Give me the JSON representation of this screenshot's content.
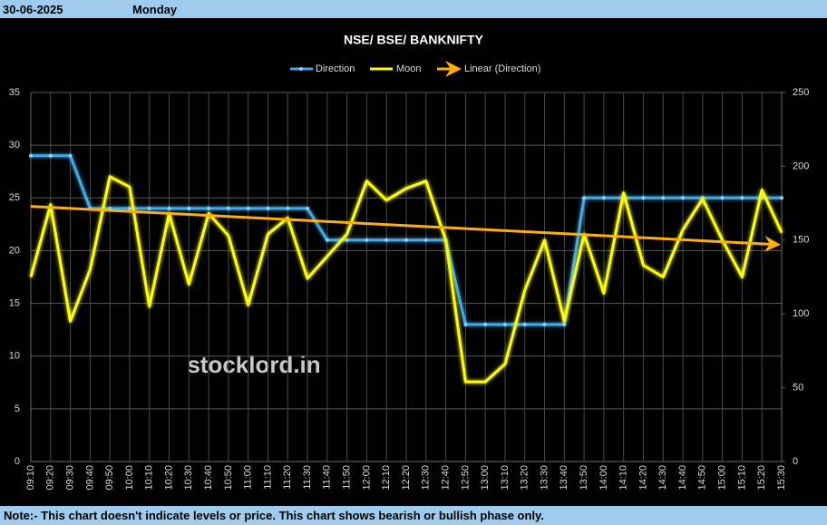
{
  "header": {
    "date": "30-06-2025",
    "day": "Monday"
  },
  "note": "Note:- This chart doesn't indicate levels or price. This chart shows bearish or bullish phase only.",
  "watermark": "stocklord.in",
  "chart_data": {
    "type": "line",
    "title": "NSE/ BSE/ BANKNIFTY",
    "categories": [
      "09:10",
      "09:20",
      "09:30",
      "09:40",
      "09:50",
      "10:00",
      "10:10",
      "10:20",
      "10:30",
      "10:40",
      "10:50",
      "11:00",
      "11:10",
      "11:20",
      "11:30",
      "11:40",
      "11:50",
      "12:00",
      "12:10",
      "12:20",
      "12:30",
      "12:40",
      "12:50",
      "13:00",
      "13:10",
      "13:20",
      "13:30",
      "13:40",
      "13:50",
      "14:00",
      "14:10",
      "14:20",
      "14:30",
      "14:40",
      "14:50",
      "15:00",
      "15:10",
      "15:20",
      "15:30"
    ],
    "series": [
      {
        "name": "Direction",
        "color": "#3fa9e6",
        "axis": "y",
        "values": [
          29,
          29,
          29,
          24,
          24,
          24,
          24,
          24,
          24,
          24,
          24,
          24,
          24,
          24,
          24,
          21,
          21,
          21,
          21,
          21,
          21,
          21,
          13,
          13,
          13,
          13,
          13,
          13,
          25,
          25,
          25,
          25,
          25,
          25,
          25,
          25,
          25,
          25,
          25
        ]
      },
      {
        "name": "Moon",
        "color": "#ffff00",
        "axis": "y2",
        "values": [
          125,
          174,
          95,
          130,
          193,
          186,
          105,
          168,
          120,
          168,
          153,
          106,
          154,
          165,
          124,
          139,
          154,
          190,
          177,
          185,
          190,
          150,
          54,
          54,
          66,
          116,
          150,
          95,
          154,
          114,
          182,
          133,
          125,
          157,
          178,
          150,
          125,
          184,
          155
        ]
      }
    ],
    "trend": {
      "name": "Linear (Direction)",
      "color": "#ffb000",
      "start": 24.2,
      "end": 20.6
    },
    "ylim": [
      0,
      35
    ],
    "yticks": [
      0,
      5,
      10,
      15,
      20,
      25,
      30,
      35
    ],
    "y2lim": [
      0,
      250
    ],
    "y2ticks": [
      0,
      50,
      100,
      150,
      200,
      250
    ],
    "grid": true
  }
}
